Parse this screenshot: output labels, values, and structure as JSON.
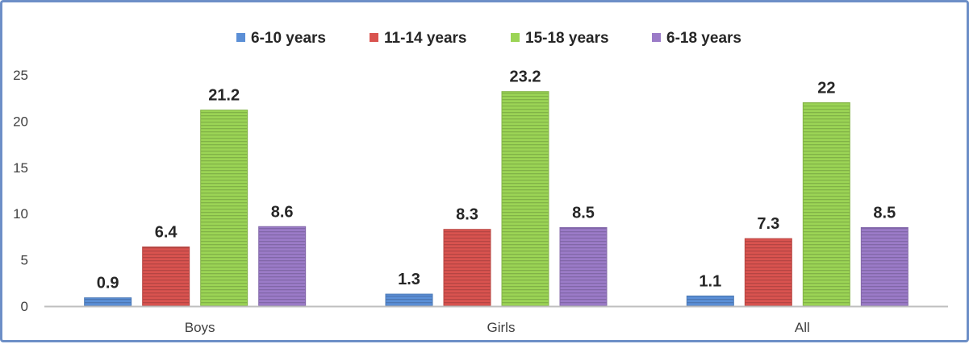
{
  "chart_data": {
    "type": "bar",
    "categories": [
      "Boys",
      "Girls",
      "All"
    ],
    "series": [
      {
        "name": "6-10 years",
        "color": "#5b8fd6",
        "values": [
          0.9,
          1.3,
          1.1
        ]
      },
      {
        "name": "11-14 years",
        "color": "#d9534f",
        "values": [
          6.4,
          8.3,
          7.3
        ]
      },
      {
        "name": "15-18 years",
        "color": "#9bd455",
        "values": [
          21.2,
          23.2,
          22
        ]
      },
      {
        "name": "6-18 years",
        "color": "#9b7bc8",
        "values": [
          8.6,
          8.5,
          8.5
        ]
      }
    ],
    "ylim": [
      0,
      25
    ],
    "yticks": [
      "0",
      "5",
      "10",
      "15",
      "20",
      "25"
    ],
    "data_labels": [
      [
        "0.9",
        "6.4",
        "21.2",
        "8.6"
      ],
      [
        "1.3",
        "8.3",
        "23.2",
        "8.5"
      ],
      [
        "1.1",
        "7.3",
        "22",
        "8.5"
      ]
    ],
    "legend_position": "top-center",
    "grid": false,
    "title": "",
    "xlabel": "",
    "ylabel": ""
  }
}
